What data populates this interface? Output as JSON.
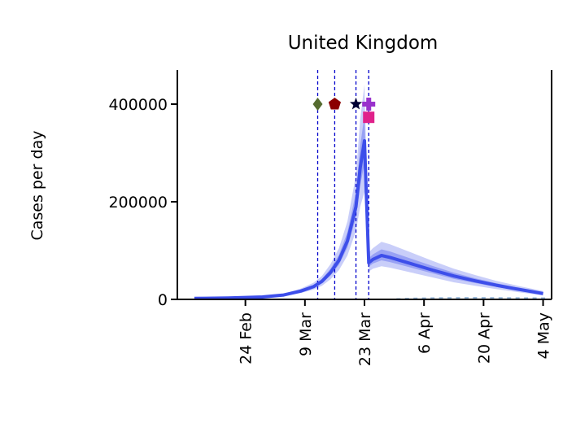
{
  "chart_data": {
    "type": "line",
    "title": "United Kingdom",
    "xlabel": "",
    "ylabel": "Cases per day",
    "ylim": [
      0,
      470000
    ],
    "xlim": [
      "2020-02-08",
      "2020-05-06"
    ],
    "x_ticks": [
      {
        "date": "2020-02-24",
        "label": "24 Feb"
      },
      {
        "date": "2020-03-09",
        "label": "9 Mar"
      },
      {
        "date": "2020-03-23",
        "label": "23 Mar"
      },
      {
        "date": "2020-04-06",
        "label": "6 Apr"
      },
      {
        "date": "2020-04-20",
        "label": "20 Apr"
      },
      {
        "date": "2020-05-04",
        "label": "4 May"
      }
    ],
    "y_ticks": [
      {
        "value": 0,
        "label": "0"
      },
      {
        "value": 200000,
        "label": "200000"
      },
      {
        "value": 400000,
        "label": "400000"
      }
    ],
    "intervention_dates": [
      "2020-03-12",
      "2020-03-16",
      "2020-03-21",
      "2020-03-24"
    ],
    "markers": [
      {
        "date": "2020-03-12",
        "value": 400000,
        "shape": "diamond",
        "color": "#556b2f"
      },
      {
        "date": "2020-03-16",
        "value": 400000,
        "shape": "pentagon",
        "color": "#8b0000"
      },
      {
        "date": "2020-03-21",
        "value": 400000,
        "shape": "star",
        "color": "#000033"
      },
      {
        "date": "2020-03-24",
        "value": 400000,
        "shape": "plus",
        "color": "#9932cc"
      },
      {
        "date": "2020-03-24",
        "value": 373000,
        "shape": "square",
        "color": "#e0218a"
      }
    ],
    "series": [
      {
        "dates": [
          "2020-02-12",
          "2020-02-20",
          "2020-02-28",
          "2020-03-04",
          "2020-03-08",
          "2020-03-11",
          "2020-03-13",
          "2020-03-15",
          "2020-03-17",
          "2020-03-19",
          "2020-03-21",
          "2020-03-22",
          "2020-03-23",
          "2020-03-24",
          "2020-03-25",
          "2020-03-27",
          "2020-03-29",
          "2020-04-03",
          "2020-04-08",
          "2020-04-13",
          "2020-04-18",
          "2020-04-23",
          "2020-04-28",
          "2020-05-04"
        ],
        "values": [
          2000,
          3000,
          5000,
          9000,
          17000,
          26000,
          37000,
          55000,
          80000,
          120000,
          190000,
          270000,
          325000,
          75000,
          82000,
          90000,
          86000,
          73000,
          60000,
          48000,
          38000,
          29000,
          21000,
          12000
        ],
        "lower": [
          1500,
          2200,
          3800,
          6800,
          13000,
          20000,
          28000,
          41000,
          60000,
          90000,
          140000,
          190000,
          220000,
          57000,
          63000,
          68000,
          65000,
          55000,
          45000,
          35000,
          28000,
          21000,
          15000,
          8000
        ],
        "upper": [
          2600,
          3900,
          6500,
          11700,
          22000,
          34000,
          48000,
          72000,
          105000,
          160000,
          255000,
          370000,
          440000,
          96000,
          105000,
          118000,
          113000,
          96000,
          79000,
          63000,
          50000,
          38000,
          28000,
          17000
        ],
        "color": "#3d4eea"
      }
    ],
    "observed_bars": {
      "dates": [
        "2020-03-31",
        "2020-04-02",
        "2020-04-04",
        "2020-04-06",
        "2020-04-08",
        "2020-04-10",
        "2020-04-12",
        "2020-04-14",
        "2020-04-16",
        "2020-04-18",
        "2020-04-20",
        "2020-04-22",
        "2020-04-24",
        "2020-04-26",
        "2020-04-28",
        "2020-04-30",
        "2020-05-02",
        "2020-05-04"
      ],
      "values": [
        2500,
        3200,
        3700,
        4000,
        4300,
        4500,
        4600,
        4700,
        4800,
        4900,
        4800,
        4700,
        4600,
        4500,
        4400,
        4300,
        4200,
        4100
      ],
      "color": "#7ea6d1"
    },
    "grid": false,
    "legend": "none"
  }
}
